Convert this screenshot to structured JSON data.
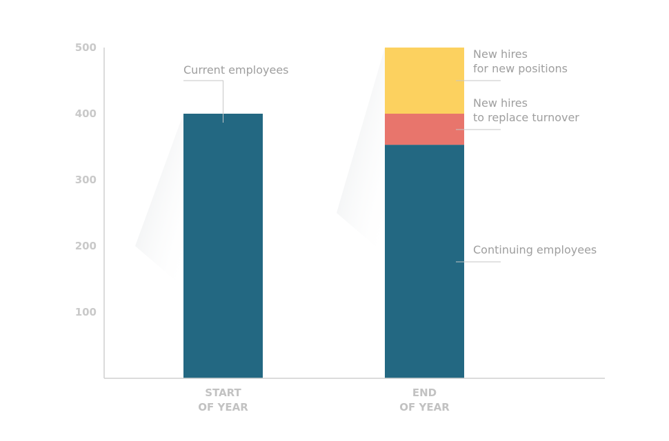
{
  "chart_data": {
    "type": "bar",
    "stacked": true,
    "title": "",
    "xlabel": "",
    "ylabel": "",
    "ylim": [
      0,
      500
    ],
    "yticks": [
      100,
      200,
      300,
      400,
      500
    ],
    "grid": false,
    "categories": [
      {
        "line1": "START",
        "line2": "OF YEAR"
      },
      {
        "line1": "END",
        "line2": "OF YEAR"
      }
    ],
    "series": [
      {
        "name": "Current employees",
        "color": "#236882",
        "values": [
          400,
          0
        ]
      },
      {
        "name": "Continuing  employees",
        "color": "#236882",
        "values": [
          0,
          353
        ]
      },
      {
        "name": "New hires to replace turnover",
        "color": "#e8756c",
        "values": [
          0,
          47
        ]
      },
      {
        "name": "New hires for new positions",
        "color": "#fcd15f",
        "values": [
          0,
          100
        ]
      }
    ],
    "annotations": [
      {
        "id": "current",
        "lines": [
          "Current employees"
        ],
        "category": 0,
        "value": 400
      },
      {
        "id": "new-positions",
        "lines": [
          "New hires",
          "for new positions"
        ],
        "category": 1,
        "value": 450
      },
      {
        "id": "turnover",
        "lines": [
          "New hires",
          "to replace turnover"
        ],
        "category": 1,
        "value": 376
      },
      {
        "id": "continuing",
        "lines": [
          "Continuing  employees"
        ],
        "category": 1,
        "value": 176
      }
    ]
  }
}
